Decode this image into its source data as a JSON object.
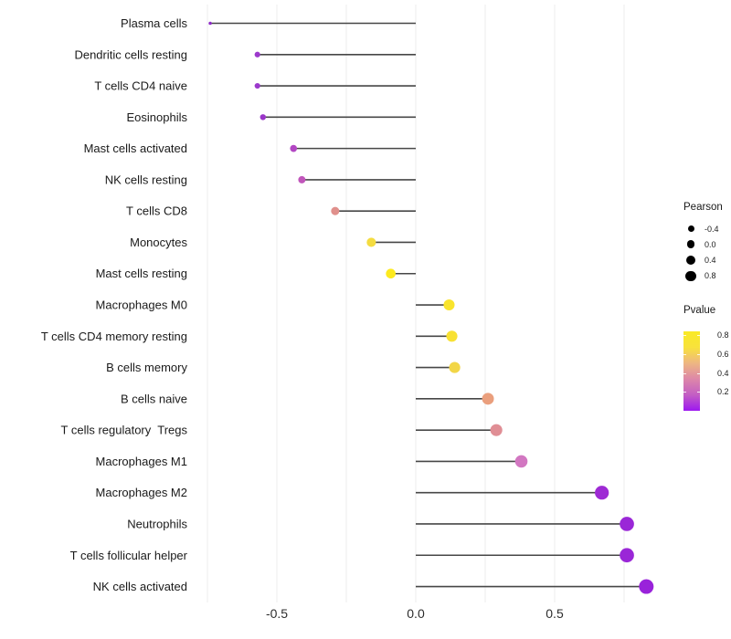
{
  "figure": {
    "background": "#ffffff"
  },
  "chart_data": {
    "type": "lollipop",
    "title": "",
    "xlabel": "",
    "ylabel": "",
    "x_tick_labels": [
      "-0.5",
      "0.0",
      "0.5"
    ],
    "x_tick_values": [
      -0.5,
      0.0,
      0.5
    ],
    "xlim": [
      -0.85,
      0.87
    ],
    "gridline_values": [
      -0.75,
      -0.5,
      -0.25,
      0,
      0.25,
      0.5,
      0.75
    ],
    "grid_on": true,
    "legend_position": "right",
    "rows": [
      {
        "name": "Plasma cells",
        "pearson": -0.74,
        "pvalue": 0.02,
        "color": "#8e2bc8"
      },
      {
        "name": "Dendritic cells resting",
        "pearson": -0.57,
        "pvalue": 0.1,
        "color": "#9c39cc"
      },
      {
        "name": "T cells CD4 naive",
        "pearson": -0.57,
        "pvalue": 0.1,
        "color": "#9c39cc"
      },
      {
        "name": "Eosinophils",
        "pearson": -0.55,
        "pvalue": 0.11,
        "color": "#9a36c8"
      },
      {
        "name": "Mast cells activated",
        "pearson": -0.44,
        "pvalue": 0.16,
        "color": "#b246c3"
      },
      {
        "name": "NK cells resting",
        "pearson": -0.41,
        "pvalue": 0.2,
        "color": "#c156bb"
      },
      {
        "name": "T cells CD8",
        "pearson": -0.29,
        "pvalue": 0.42,
        "color": "#e0908c"
      },
      {
        "name": "Monocytes",
        "pearson": -0.16,
        "pvalue": 0.68,
        "color": "#f4dc40"
      },
      {
        "name": "Mast cells resting",
        "pearson": -0.09,
        "pvalue": 0.8,
        "color": "#fdea1f"
      },
      {
        "name": "Macrophages M0",
        "pearson": 0.12,
        "pvalue": 0.78,
        "color": "#f9e42c"
      },
      {
        "name": "T cells CD4 memory resting",
        "pearson": 0.13,
        "pvalue": 0.76,
        "color": "#f8e133"
      },
      {
        "name": "B cells memory",
        "pearson": 0.14,
        "pvalue": 0.72,
        "color": "#f2d647"
      },
      {
        "name": "B cells naive",
        "pearson": 0.26,
        "pvalue": 0.48,
        "color": "#ea9f7d"
      },
      {
        "name": "T cells regulatory  Tregs",
        "pearson": 0.29,
        "pvalue": 0.43,
        "color": "#e08e95"
      },
      {
        "name": "Macrophages M1",
        "pearson": 0.38,
        "pvalue": 0.28,
        "color": "#d277c1"
      },
      {
        "name": "Macrophages M2",
        "pearson": 0.67,
        "pvalue": 0.05,
        "color": "#9e2ad4"
      },
      {
        "name": "Neutrophils",
        "pearson": 0.76,
        "pvalue": 0.04,
        "color": "#9a27d7"
      },
      {
        "name": "T cells follicular helper",
        "pearson": 0.76,
        "pvalue": 0.04,
        "color": "#9a27d7"
      },
      {
        "name": "NK cells activated",
        "pearson": 0.83,
        "pvalue": 0.03,
        "color": "#9922da"
      }
    ]
  },
  "legend": {
    "pearson": {
      "title": "Pearson",
      "dot_color": "#000000",
      "items": [
        {
          "label": "-0.4",
          "value": -0.4
        },
        {
          "label": "0.0",
          "value": 0.0
        },
        {
          "label": "0.4",
          "value": 0.4
        },
        {
          "label": "0.8",
          "value": 0.8
        }
      ]
    },
    "pvalue": {
      "title": "Pvalue",
      "range": [
        0,
        0.84
      ],
      "ticks": [
        {
          "label": "0.8",
          "value": 0.8
        },
        {
          "label": "0.6",
          "value": 0.6
        },
        {
          "label": "0.4",
          "value": 0.4
        },
        {
          "label": "0.2",
          "value": 0.2
        }
      ],
      "gradient_top_to_bottom": [
        "#f9ea25",
        "#f8e23c",
        "#eeb682",
        "#dd87a9",
        "#c35ec4",
        "#9d18f0"
      ]
    }
  },
  "colors": {
    "stem": "#474747",
    "grid": "#ededed",
    "axis_text": "#2d2d2d",
    "label_text": "#1a1a1a"
  }
}
